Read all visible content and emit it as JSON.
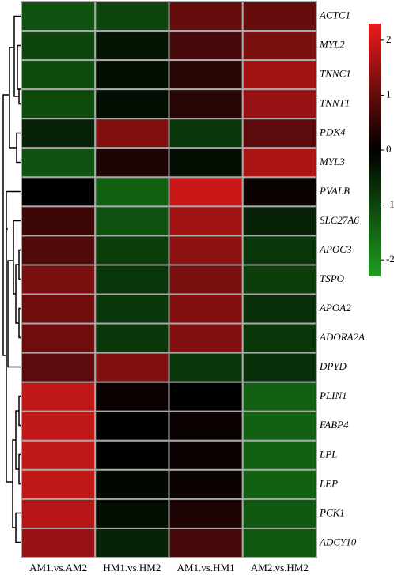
{
  "chart_data": {
    "type": "heatmap",
    "columns": [
      "AM1.vs.AM2",
      "HM1.vs.HM2",
      "AM1.vs.HM1",
      "AM2.vs.HM2"
    ],
    "rows": [
      "ACTC1",
      "MYL2",
      "TNNC1",
      "TNNT1",
      "PDK4",
      "MYL3",
      "PVALB",
      "SLC27A6",
      "APOC3",
      "TSPO",
      "APOA2",
      "ADORA2A",
      "DPYD",
      "PLIN1",
      "FABP4",
      "LPL",
      "LEP",
      "PCK1",
      "ADCY10"
    ],
    "values": [
      [
        -1.2,
        -1.0,
        1.0,
        1.0
      ],
      [
        -1.0,
        -0.3,
        0.7,
        1.2
      ],
      [
        -1.1,
        -0.2,
        0.4,
        1.6
      ],
      [
        -1.1,
        -0.2,
        0.4,
        1.5
      ],
      [
        -0.5,
        1.3,
        -0.8,
        0.9
      ],
      [
        -1.2,
        0.3,
        -0.2,
        1.7
      ],
      [
        0,
        -1.4,
        2.0,
        0.1
      ],
      [
        0.6,
        -1.2,
        1.6,
        -0.5
      ],
      [
        0.8,
        -0.9,
        1.4,
        -0.8
      ],
      [
        1.2,
        -0.8,
        1.2,
        -0.9
      ],
      [
        1.1,
        -0.8,
        1.3,
        -0.7
      ],
      [
        1.1,
        -0.8,
        1.3,
        -0.8
      ],
      [
        0.9,
        1.3,
        -0.8,
        -0.7
      ],
      [
        1.9,
        0.1,
        0,
        -1.4
      ],
      [
        1.9,
        0,
        0.1,
        -1.4
      ],
      [
        1.9,
        0,
        0.1,
        -1.4
      ],
      [
        1.9,
        -0.1,
        0.1,
        -1.4
      ],
      [
        1.8,
        -0.2,
        0.3,
        -1.3
      ],
      [
        1.5,
        -0.5,
        0.7,
        -1.3
      ]
    ],
    "colors": {
      "low": "#1e9e1e",
      "mid": "#000000",
      "high": "#e81c1c"
    },
    "clim": [
      -2.3,
      2.3
    ],
    "cticks": [
      -2,
      -1,
      0,
      1,
      2
    ]
  }
}
